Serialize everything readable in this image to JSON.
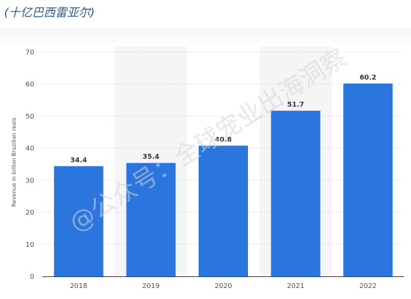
{
  "header": {
    "title": "(十亿巴西雷亚尔)"
  },
  "watermark": "@公众号：全球宠业出海洞察",
  "colors": {
    "bar": "#2a75de",
    "band": "#f5f5f5",
    "grid": "#dcdcdc",
    "axis": "#333333"
  },
  "chart_data": {
    "type": "bar",
    "categories": [
      "2018",
      "2019",
      "2020",
      "2021",
      "2022"
    ],
    "values": [
      34.4,
      35.4,
      40.8,
      51.7,
      60.2
    ],
    "value_labels": [
      "34.4",
      "35.4",
      "40.8",
      "51.7",
      "60.2"
    ],
    "title": "",
    "xlabel": "",
    "ylabel": "Revenue in billion Brazilian reals",
    "ylim": [
      0,
      70
    ],
    "yticks": [
      0,
      10,
      20,
      30,
      40,
      50,
      60,
      70
    ],
    "grid": true,
    "legend": "none"
  }
}
